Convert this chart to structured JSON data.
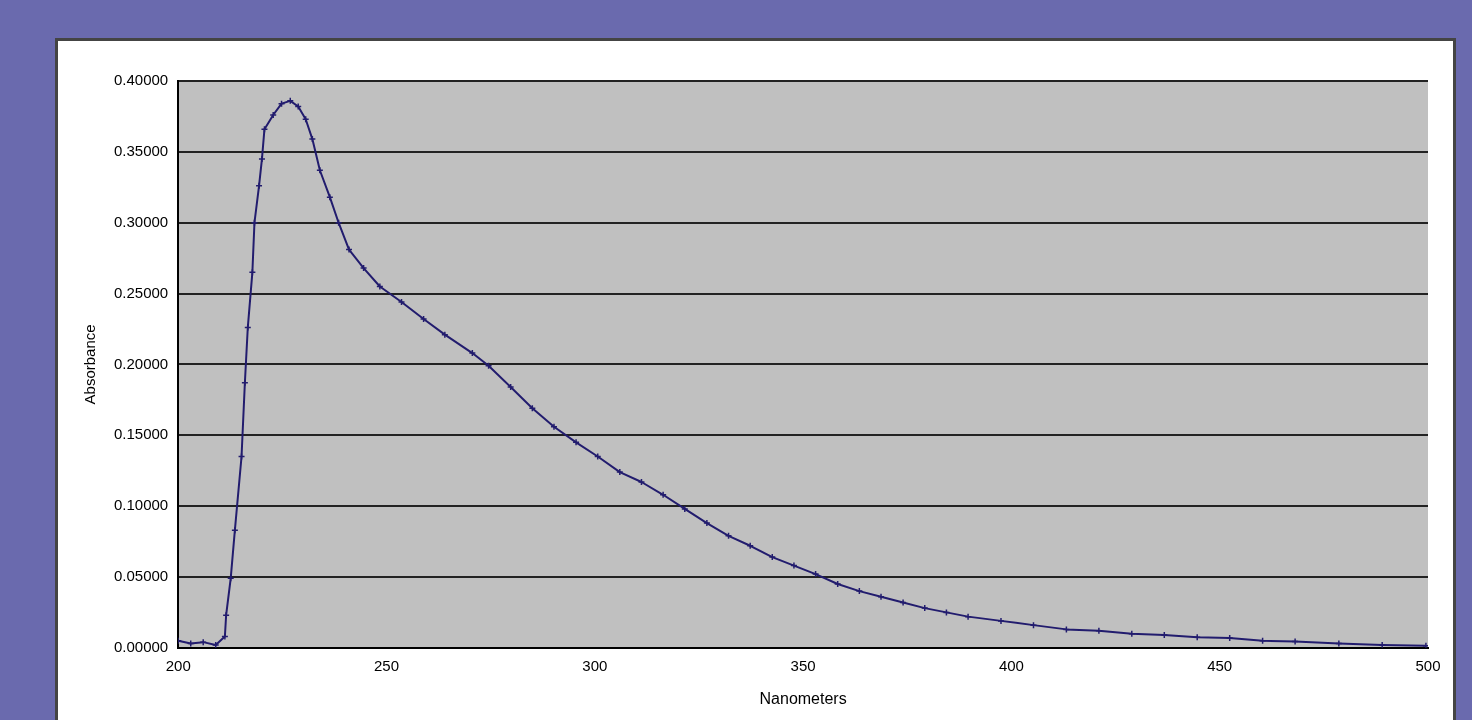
{
  "chart_data": {
    "type": "line",
    "xlabel": "Nanometers",
    "ylabel": "Absorbance",
    "x": [
      200,
      203,
      206,
      209,
      211.2,
      211.5,
      212.6,
      213.6,
      215.2,
      216,
      216.7,
      217.8,
      218.3,
      219.4,
      220.1,
      220.7,
      222.8,
      224.8,
      226.9,
      228.8,
      230.6,
      232.2,
      234,
      236.4,
      238.5,
      241,
      244.5,
      248.4,
      253.6,
      258.9,
      264,
      270.6,
      274.5,
      279.8,
      285,
      290.2,
      295.5,
      300.7,
      306,
      311.2,
      316.4,
      321.6,
      326.9,
      332.1,
      337.3,
      342.6,
      347.8,
      353,
      358.3,
      363.5,
      368.7,
      374,
      379.2,
      384.4,
      389.6,
      397.5,
      405.3,
      413.2,
      421,
      428.9,
      436.7,
      444.6,
      452.4,
      460.3,
      468.1,
      478.6,
      489,
      499.5
    ],
    "series": [
      {
        "color": "#221c6e",
        "values": [
          0.005,
          0.003,
          0.004,
          0.002,
          0.008,
          0.023,
          0.049,
          0.083,
          0.135,
          0.187,
          0.226,
          0.265,
          0.3,
          0.326,
          0.345,
          0.366,
          0.376,
          0.384,
          0.386,
          0.382,
          0.373,
          0.359,
          0.337,
          0.318,
          0.3,
          0.281,
          0.268,
          0.255,
          0.244,
          0.232,
          0.221,
          0.208,
          0.199,
          0.184,
          0.169,
          0.156,
          0.145,
          0.135,
          0.124,
          0.117,
          0.108,
          0.098,
          0.088,
          0.079,
          0.072,
          0.064,
          0.058,
          0.052,
          0.045,
          0.04,
          0.036,
          0.032,
          0.028,
          0.025,
          0.022,
          0.019,
          0.016,
          0.013,
          0.012,
          0.01,
          0.009,
          0.0075,
          0.007,
          0.005,
          0.0045,
          0.003,
          0.002,
          0.0015
        ]
      }
    ],
    "xlim": [
      200,
      500
    ],
    "xticks": [
      200,
      250,
      300,
      350,
      400,
      450,
      500
    ],
    "ylim": [
      0,
      0.4
    ],
    "yticks": [
      {
        "value": 0,
        "label": "0.00000"
      },
      {
        "value": 0.05,
        "label": "0.05000"
      },
      {
        "value": 0.1,
        "label": "0.10000"
      },
      {
        "value": 0.15,
        "label": "0.15000"
      },
      {
        "value": 0.2,
        "label": "0.20000"
      },
      {
        "value": 0.25,
        "label": "0.25000"
      },
      {
        "value": 0.3,
        "label": "0.30000"
      },
      {
        "value": 0.35,
        "label": "0.35000"
      },
      {
        "value": 0.4,
        "label": "0.40000"
      }
    ],
    "grid": "y",
    "legend": false,
    "marker": "cross",
    "line_style": "solid"
  }
}
